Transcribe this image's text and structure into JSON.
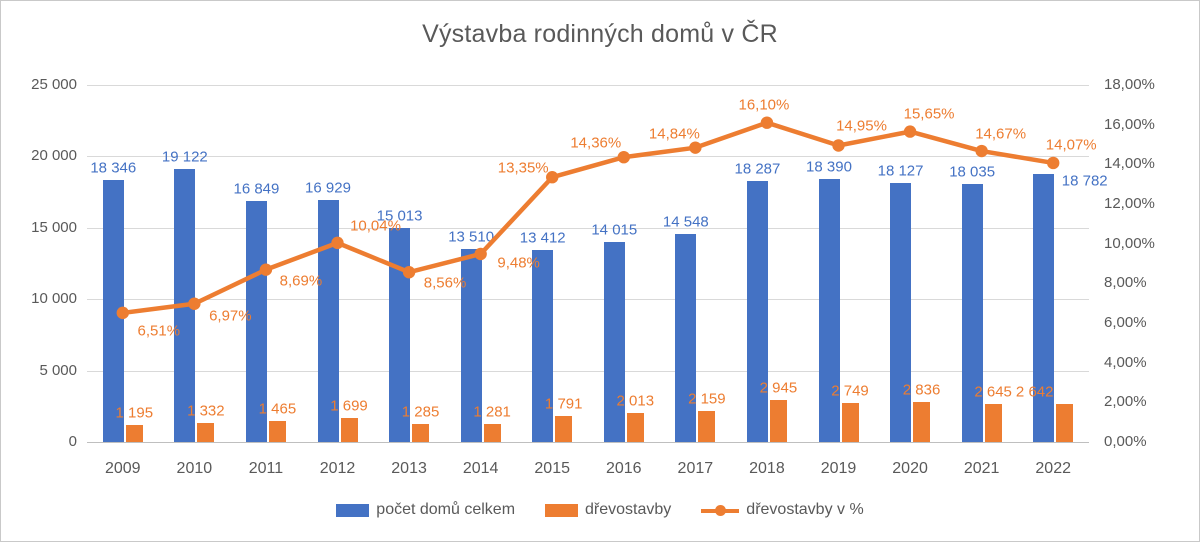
{
  "title": "Výstavba rodinných domů v ČR",
  "chart_data": {
    "type": "combo",
    "subtype": "bar+line",
    "categories": [
      "2009",
      "2010",
      "2011",
      "2012",
      "2013",
      "2014",
      "2015",
      "2016",
      "2017",
      "2018",
      "2019",
      "2020",
      "2021",
      "2022"
    ],
    "series": [
      {
        "name": "počet domů celkem",
        "type": "bar",
        "axis": "left",
        "color": "#4472C4",
        "values": [
          18346,
          19122,
          16849,
          16929,
          15013,
          13510,
          13412,
          14015,
          14548,
          18287,
          18390,
          18127,
          18035,
          18782
        ],
        "labels": [
          "18 346",
          "19 122",
          "16 849",
          "16 929",
          "15 013",
          "13 510",
          "13 412",
          "14 015",
          "14 548",
          "18 287",
          "18 390",
          "18 127",
          "18 035",
          "18 782"
        ]
      },
      {
        "name": "dřevostavby",
        "type": "bar",
        "axis": "left",
        "color": "#ED7D31",
        "values": [
          1195,
          1332,
          1465,
          1699,
          1285,
          1281,
          1791,
          2013,
          2159,
          2945,
          2749,
          2836,
          2645,
          2642
        ],
        "labels": [
          "1 195",
          "1 332",
          "1 465",
          "1 699",
          "1 285",
          "1 281",
          "1 791",
          "2 013",
          "2 159",
          "2 945",
          "2 749",
          "2 836",
          "2 645",
          "2 642"
        ]
      },
      {
        "name": "dřevostavby v %",
        "type": "line",
        "axis": "right",
        "color": "#ED7D31",
        "values": [
          6.51,
          6.97,
          8.69,
          10.04,
          8.56,
          9.48,
          13.35,
          14.36,
          14.84,
          16.1,
          14.95,
          15.65,
          14.67,
          14.07
        ],
        "labels": [
          "6,51%",
          "6,97%",
          "8,69%",
          "10,04%",
          "8,56%",
          "9,48%",
          "13,35%",
          "14,36%",
          "14,84%",
          "16,10%",
          "14,95%",
          "15,65%",
          "14,67%",
          "14,07%"
        ]
      }
    ],
    "left_axis": {
      "min": 0,
      "max": 25000,
      "step": 5000,
      "ticks": [
        "25 000",
        "20 000",
        "15 000",
        "10 000",
        "5 000",
        "0"
      ]
    },
    "right_axis": {
      "min": 0,
      "max": 18,
      "step": 2,
      "ticks": [
        "18,00%",
        "16,00%",
        "14,00%",
        "12,00%",
        "10,00%",
        "8,00%",
        "6,00%",
        "4,00%",
        "2,00%",
        "0,00%"
      ]
    },
    "legend_position": "bottom",
    "grid": true
  }
}
